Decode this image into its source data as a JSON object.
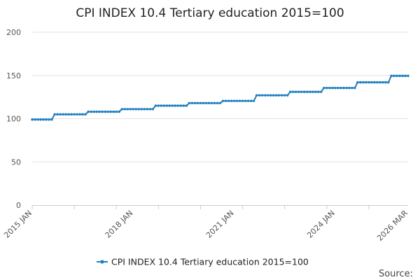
{
  "chart_data": {
    "type": "line",
    "title": "CPI INDEX 10.4 Tertiary education 2015=100",
    "xlabel": "",
    "ylabel": "",
    "ylim": [
      0,
      200
    ],
    "y_ticks": [
      "0",
      "50",
      "100",
      "150",
      "200"
    ],
    "x_tick_labels": [
      "2015 JAN",
      "2018 JAN",
      "2021 JAN",
      "2024 JAN",
      "2026 MAR"
    ],
    "x_range": [
      "2015-01",
      "2026-03"
    ],
    "grid": "horizontal",
    "legend": "bottom",
    "series": [
      {
        "name": "CPI INDEX 10.4 Tertiary education 2015=100",
        "color": "#1f7fbf",
        "marker": "circle",
        "annual_steps": [
          {
            "from": "2015-01",
            "to": "2015-08",
            "value": 99.0
          },
          {
            "from": "2015-09",
            "to": "2016-08",
            "value": 105.0
          },
          {
            "from": "2016-09",
            "to": "2017-08",
            "value": 108.0
          },
          {
            "from": "2017-09",
            "to": "2018-08",
            "value": 111.0
          },
          {
            "from": "2018-09",
            "to": "2019-08",
            "value": 115.0
          },
          {
            "from": "2019-09",
            "to": "2020-08",
            "value": 118.0
          },
          {
            "from": "2020-09",
            "to": "2021-08",
            "value": 120.5
          },
          {
            "from": "2021-09",
            "to": "2022-08",
            "value": 127.0
          },
          {
            "from": "2022-09",
            "to": "2023-08",
            "value": 131.0
          },
          {
            "from": "2023-09",
            "to": "2024-08",
            "value": 135.5
          },
          {
            "from": "2024-09",
            "to": "2025-08",
            "value": 142.0
          },
          {
            "from": "2025-09",
            "to": "2026-03",
            "value": 149.5
          }
        ]
      }
    ]
  },
  "source_label": "Source:"
}
